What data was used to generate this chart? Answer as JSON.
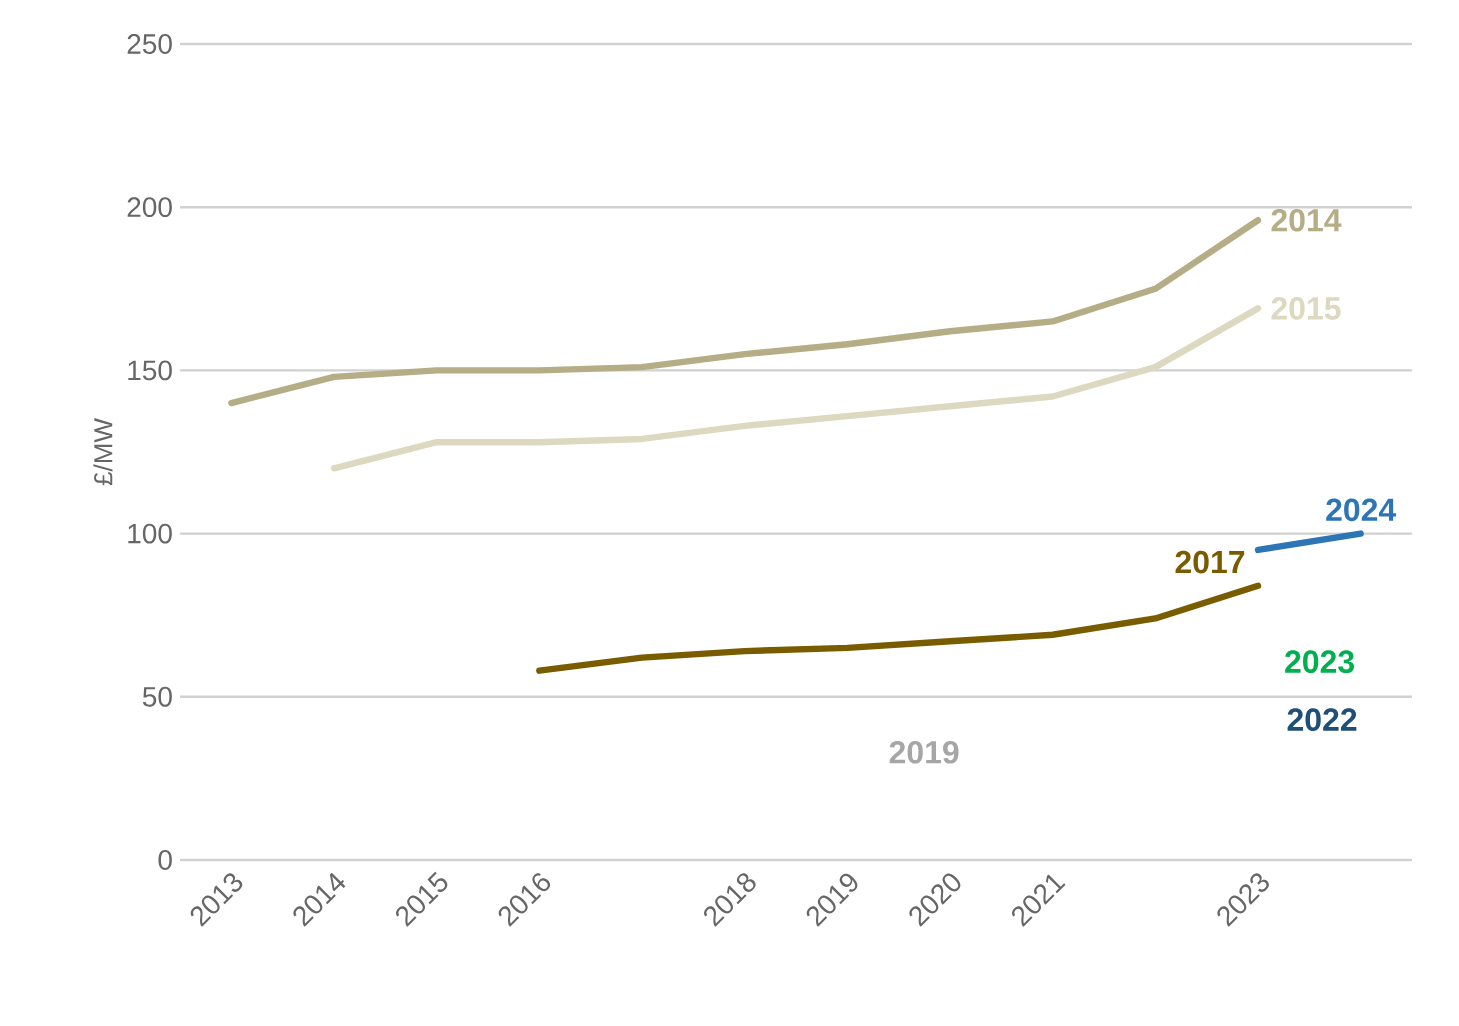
{
  "chart_data": {
    "type": "line",
    "ylabel": "£/MW",
    "categories": [
      "2013",
      "2014",
      "2015",
      "2016",
      null,
      "2018",
      "2019",
      "2020",
      "2021",
      null,
      "2023",
      null
    ],
    "series": [
      {
        "name": "2014",
        "color": "#b5ad85",
        "values": [
          140,
          148,
          150,
          150,
          151,
          155,
          158,
          162,
          165,
          175,
          196,
          null
        ]
      },
      {
        "name": "2015",
        "color": "#ddd8c0",
        "values": [
          null,
          120,
          128,
          128,
          129,
          133,
          136,
          139,
          142,
          151,
          169,
          null
        ]
      },
      {
        "name": "2017",
        "color": "#7a5c00",
        "values": [
          null,
          null,
          null,
          58,
          62,
          64,
          65,
          67,
          69,
          74,
          84,
          null
        ]
      },
      {
        "name": "2024",
        "color": "#2e75b6",
        "values": [
          null,
          null,
          null,
          null,
          null,
          null,
          null,
          null,
          null,
          null,
          95,
          100
        ]
      }
    ],
    "annotations": [
      "2019",
      "2023",
      "2022"
    ],
    "ylim": [
      0,
      250
    ],
    "yticks": [
      0,
      50,
      100,
      150,
      200,
      250
    ],
    "grid": "y",
    "marker": "none",
    "line_style": "solid"
  }
}
